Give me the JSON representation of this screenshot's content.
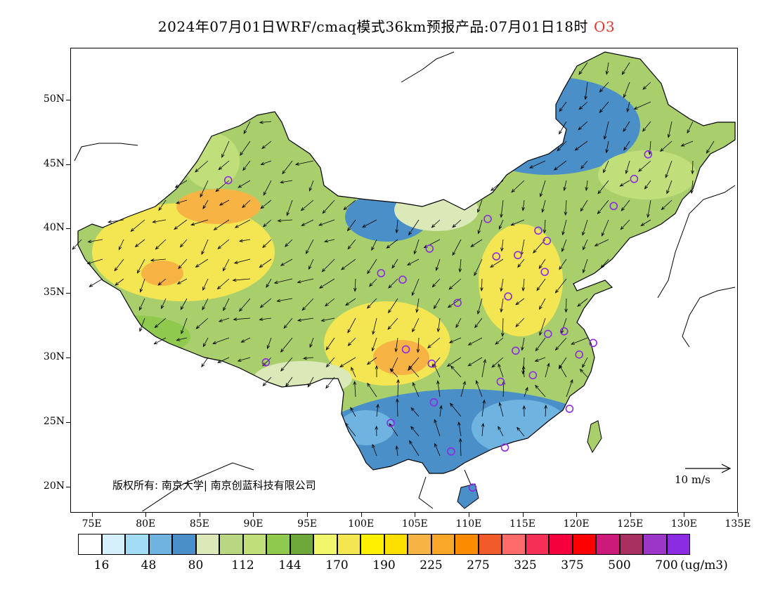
{
  "title": {
    "main": "2024年07月01日WRF/cmaq模式36km预报产品:07月01日18时",
    "species": "O3"
  },
  "map": {
    "lat_labels": [
      "50N",
      "45N",
      "40N",
      "35N",
      "30N",
      "25N",
      "20N"
    ],
    "lat_values": [
      50,
      45,
      40,
      35,
      30,
      25,
      20
    ],
    "lon_labels": [
      "75E",
      "80E",
      "85E",
      "90E",
      "95E",
      "100E",
      "105E",
      "110E",
      "115E",
      "120E",
      "125E",
      "130E",
      "135E"
    ],
    "lon_values": [
      75,
      80,
      85,
      90,
      95,
      100,
      105,
      110,
      115,
      120,
      125,
      130,
      135
    ],
    "extent": {
      "lon_min": 73,
      "lon_max": 135,
      "lat_min": 18,
      "lat_max": 54
    },
    "copyright": "版权所有: 南京大学| 南京创蓝科技有限公司",
    "wind_reference": "10 m/s",
    "stations": [
      [
        87.6,
        43.8
      ],
      [
        91.1,
        29.7
      ],
      [
        101.8,
        36.6
      ],
      [
        103.8,
        36.1
      ],
      [
        106.3,
        38.5
      ],
      [
        111.7,
        40.8
      ],
      [
        116.4,
        39.9
      ],
      [
        117.2,
        39.1
      ],
      [
        114.5,
        38.0
      ],
      [
        112.5,
        37.9
      ],
      [
        117.0,
        36.7
      ],
      [
        113.6,
        34.8
      ],
      [
        108.9,
        34.3
      ],
      [
        104.1,
        30.7
      ],
      [
        106.5,
        29.6
      ],
      [
        106.7,
        26.6
      ],
      [
        102.7,
        25.0
      ],
      [
        108.3,
        22.8
      ],
      [
        113.3,
        23.1
      ],
      [
        114.3,
        30.6
      ],
      [
        112.9,
        28.2
      ],
      [
        115.9,
        28.7
      ],
      [
        117.3,
        31.9
      ],
      [
        118.8,
        32.1
      ],
      [
        120.2,
        30.3
      ],
      [
        121.5,
        31.2
      ],
      [
        119.3,
        26.1
      ],
      [
        110.3,
        20.0
      ],
      [
        126.6,
        45.8
      ],
      [
        125.3,
        43.9
      ],
      [
        123.4,
        41.8
      ]
    ]
  },
  "legend": {
    "colors": [
      "#ffffff",
      "#d6f0fb",
      "#a3dcf5",
      "#6fb3e0",
      "#4a8fc8",
      "#dbe8b8",
      "#b9d680",
      "#c0de7a",
      "#8fca4e",
      "#6ea83a",
      "#f2f66a",
      "#f4e552",
      "#fff000",
      "#fde000",
      "#f7b445",
      "#f9a728",
      "#fb8c00",
      "#f15a2a",
      "#ff6b6b",
      "#f52f55",
      "#f5003c",
      "#ff0000",
      "#cc1a7a",
      "#a83060",
      "#9b36c9",
      "#8b2be2"
    ],
    "labels": [
      "16",
      "48",
      "80",
      "112",
      "144",
      "170",
      "190",
      "225",
      "275",
      "325",
      "375",
      "500",
      "700"
    ],
    "unit": "(ug/m3)"
  }
}
